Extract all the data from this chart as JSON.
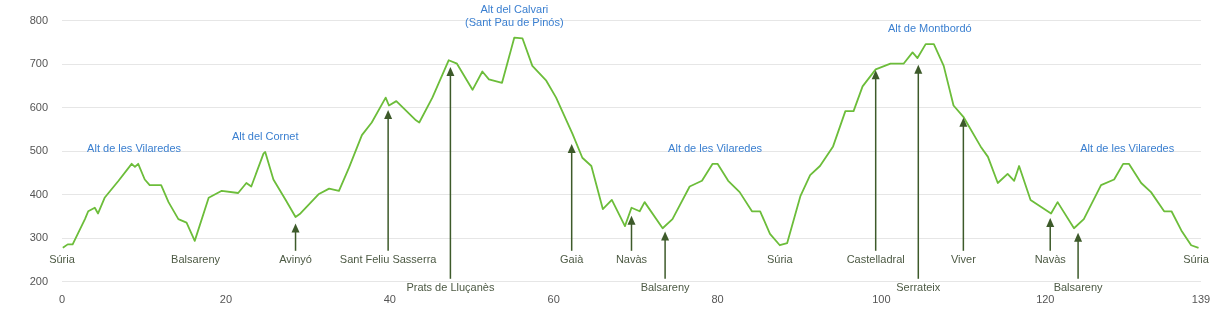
{
  "chart_data": {
    "type": "line",
    "x": [
      0.1,
      0.7,
      1.3,
      2.8,
      3.2,
      4.0,
      4.4,
      5.2,
      6.9,
      8.5,
      8.9,
      9.3,
      10.1,
      10.7,
      12.1,
      13.0,
      14.2,
      15.2,
      16.2,
      17.9,
      19.5,
      21.5,
      22.5,
      23.1,
      24.6,
      24.8,
      25.8,
      27.3,
      28.5,
      29.1,
      31.3,
      32.6,
      33.8,
      35.0,
      36.6,
      37.8,
      39.5,
      39.9,
      40.8,
      43.2,
      43.6,
      45.2,
      47.2,
      48.2,
      50.1,
      51.3,
      52.1,
      53.7,
      55.2,
      56.2,
      57.4,
      59.1,
      60.3,
      62.3,
      63.5,
      64.6,
      66.0,
      67.1,
      68.7,
      69.5,
      70.5,
      71.1,
      73.3,
      74.5,
      76.6,
      78.1,
      79.4,
      80.0,
      81.3,
      82.7,
      84.2,
      85.2,
      86.4,
      87.6,
      88.5,
      90.1,
      91.3,
      92.5,
      94.1,
      95.6,
      96.6,
      97.7,
      99.3,
      101.1,
      102.7,
      103.8,
      104.4,
      105.4,
      106.4,
      107.6,
      108.8,
      110.0,
      112.1,
      113.0,
      114.2,
      115.4,
      116.2,
      116.8,
      118.2,
      120.7,
      121.5,
      123.5,
      124.7,
      126.8,
      128.4,
      129.5,
      130.2,
      131.7,
      132.9,
      134.5,
      135.4,
      136.6,
      137.8,
      138.7
    ],
    "series": [
      {
        "color": "#6cbd3a",
        "values": [
          278,
          286,
          286,
          344,
          362,
          370,
          357,
          393,
          432,
          471,
          464,
          471,
          435,
          422,
          422,
          383,
          344,
          336,
          294,
          393,
          409,
          404,
          427,
          419,
          495,
          498,
          435,
          388,
          349,
          357,
          401,
          414,
          409,
          461,
          537,
          566,
          623,
          605,
          615,
          571,
          566,
          623,
          709,
          701,
          641,
          683,
          665,
          657,
          761,
          759,
          696,
          662,
          623,
          540,
          485,
          466,
          367,
          388,
          328,
          370,
          362,
          383,
          323,
          344,
          419,
          432,
          471,
          471,
          432,
          406,
          362,
          362,
          310,
          284,
          289,
          396,
          445,
          466,
          511,
          592,
          592,
          649,
          688,
          701,
          701,
          727,
          714,
          746,
          746,
          696,
          605,
          579,
          511,
          487,
          427,
          448,
          432,
          466,
          388,
          357,
          383,
          323,
          344,
          422,
          435,
          471,
          471,
          427,
          406,
          362,
          362,
          318,
          284,
          278
        ]
      }
    ],
    "xlim": [
      0,
      139
    ],
    "xticks": [
      0,
      20,
      40,
      60,
      80,
      100,
      120,
      139
    ],
    "ylim": [
      200,
      800
    ],
    "yticks": [
      200,
      300,
      400,
      500,
      600,
      700,
      800
    ],
    "grid": "y",
    "legend": false,
    "marker": "none",
    "annotations": [
      {
        "text": "Alt de les Vilaredes",
        "x": 8.8,
        "y": 471
      },
      {
        "text": "Alt del Cornet",
        "x": 24.8,
        "y": 498
      },
      {
        "text": "Alt del Calvari\n(Sant Pau de Pinós)",
        "x": 55.2,
        "y": 761
      },
      {
        "text": "Alt de les Vilaredes",
        "x": 79.7,
        "y": 471
      },
      {
        "text": "Alt de Montbordó",
        "x": 105.9,
        "y": 746
      },
      {
        "text": "Alt de les Vilaredes",
        "x": 130,
        "y": 471
      },
      {
        "text": "Súria",
        "x": 0,
        "y": 280
      },
      {
        "text": "Balsareny",
        "x": 16.3,
        "y": 290
      },
      {
        "text": "Avinyó",
        "x": 28.5,
        "y": 336
      },
      {
        "text": "Sant Feliu Sasserra",
        "x": 39.8,
        "y": 597
      },
      {
        "text": "Prats de Lluçanès",
        "x": 47.4,
        "y": 696
      },
      {
        "text": "Gaià",
        "x": 62.2,
        "y": 519
      },
      {
        "text": "Navàs",
        "x": 69.5,
        "y": 354
      },
      {
        "text": "Balsareny",
        "x": 73.6,
        "y": 318
      },
      {
        "text": "Súria",
        "x": 87.6,
        "y": 284
      },
      {
        "text": "Castelladral",
        "x": 99.3,
        "y": 688
      },
      {
        "text": "Serrateix",
        "x": 104.5,
        "y": 701
      },
      {
        "text": "Viver",
        "x": 110.0,
        "y": 579
      },
      {
        "text": "Navàs",
        "x": 120.6,
        "y": 349
      },
      {
        "text": "Balsareny",
        "x": 124.0,
        "y": 315
      },
      {
        "text": "Súria",
        "x": 138.4,
        "y": 278
      }
    ]
  }
}
